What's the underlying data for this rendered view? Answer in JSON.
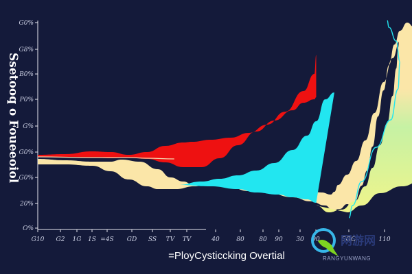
{
  "chart_data": {
    "type": "area",
    "title": "",
    "caption": "=PloyCysticcking Overtial",
    "ylabel": "Ssetooq o Foueeoiol",
    "xlabel": "",
    "x_tick_labels": [
      "G10",
      "G2",
      "1G",
      "1S",
      "=4S",
      "GD",
      "SS",
      "TV",
      "TV",
      "40",
      "80",
      "80",
      "90",
      "30",
      "90",
      "SOG",
      "110"
    ],
    "y_tick_labels": [
      "G0%",
      "G8%",
      "B0%",
      "P0%",
      "G%",
      "G0%",
      "G0%",
      "20%",
      "O%"
    ],
    "grid": false,
    "legend": "none",
    "series": [
      {
        "color": "#ee1111",
        "top": [
          [
            0,
            226
          ],
          [
            15,
            225
          ],
          [
            30,
            221
          ],
          [
            40,
            222
          ],
          [
            50,
            226
          ],
          [
            60,
            222
          ],
          [
            70,
            213
          ],
          [
            80,
            208
          ],
          [
            85,
            207
          ],
          [
            95,
            204
          ],
          [
            106,
            201
          ],
          [
            116,
            194
          ],
          [
            126,
            182
          ],
          [
            136,
            163
          ],
          [
            146,
            133
          ],
          [
            152,
            108
          ],
          [
            153,
            80
          ]
        ],
        "bottom": [
          [
            0,
            229
          ],
          [
            15,
            229
          ],
          [
            30,
            230
          ],
          [
            40,
            231
          ],
          [
            50,
            230
          ],
          [
            60,
            232
          ],
          [
            70,
            237
          ],
          [
            80,
            244
          ],
          [
            90,
            244
          ],
          [
            100,
            231
          ],
          [
            110,
            212
          ],
          [
            120,
            192
          ],
          [
            130,
            176
          ],
          [
            140,
            161
          ],
          [
            146,
            150
          ],
          [
            152,
            145
          ],
          [
            153,
            142
          ]
        ]
      },
      {
        "color": "#22e6f0",
        "top": [
          [
            77,
            270
          ],
          [
            90,
            265
          ],
          [
            100,
            261
          ],
          [
            110,
            256
          ],
          [
            120,
            249
          ],
          [
            130,
            238
          ],
          [
            140,
            219
          ],
          [
            148,
            198
          ],
          [
            153,
            177
          ],
          [
            158,
            145
          ],
          [
            163,
            135
          ]
        ],
        "bottom": [
          [
            77,
            270
          ],
          [
            95,
            272
          ],
          [
            110,
            276
          ],
          [
            120,
            281
          ],
          [
            132,
            284
          ],
          [
            140,
            288
          ],
          [
            148,
            291
          ],
          [
            153,
            296
          ]
        ]
      },
      {
        "color": "#fbe6a8",
        "top": [
          [
            0,
            232
          ],
          [
            15,
            234
          ],
          [
            30,
            236
          ],
          [
            40,
            236
          ],
          [
            46,
            233
          ],
          [
            56,
            236
          ],
          [
            66,
            247
          ],
          [
            73,
            259
          ],
          [
            80,
            265
          ],
          [
            85,
            269
          ],
          [
            95,
            271
          ],
          [
            106,
            274
          ],
          [
            116,
            279
          ],
          [
            126,
            281
          ],
          [
            140,
            288
          ],
          [
            150,
            294
          ],
          [
            158,
            300
          ],
          [
            162,
            307
          ],
          [
            166,
            305
          ],
          [
            170,
            298
          ],
          [
            172,
            300
          ],
          [
            174,
            296
          ],
          [
            178,
            271
          ],
          [
            181,
            249
          ],
          [
            184,
            214
          ],
          [
            187,
            170
          ],
          [
            190,
            132
          ],
          [
            193,
            95
          ],
          [
            196,
            65
          ],
          [
            199,
            45
          ],
          [
            203,
            35
          ]
        ],
        "bottom": [
          [
            0,
            240
          ],
          [
            15,
            240
          ],
          [
            30,
            242
          ],
          [
            40,
            250
          ],
          [
            50,
            262
          ],
          [
            60,
            272
          ],
          [
            66,
            276
          ],
          [
            76,
            276
          ],
          [
            86,
            272
          ],
          [
            96,
            267
          ],
          [
            106,
            264
          ],
          [
            116,
            262
          ],
          [
            126,
            264
          ],
          [
            136,
            268
          ],
          [
            146,
            275
          ],
          [
            156,
            281
          ],
          [
            161,
            284
          ],
          [
            163,
            280
          ],
          [
            165,
            270
          ],
          [
            170,
            255
          ],
          [
            175,
            235
          ],
          [
            180,
            205
          ],
          [
            185,
            165
          ],
          [
            190,
            120
          ],
          [
            195,
            85
          ],
          [
            199,
            60
          ],
          [
            203,
            35
          ]
        ]
      }
    ],
    "series_note_colors": [
      "#b6f29a",
      "#edf48a"
    ]
  },
  "watermark": {
    "text": "网游网",
    "subtext": "RANGYUNWANG"
  }
}
